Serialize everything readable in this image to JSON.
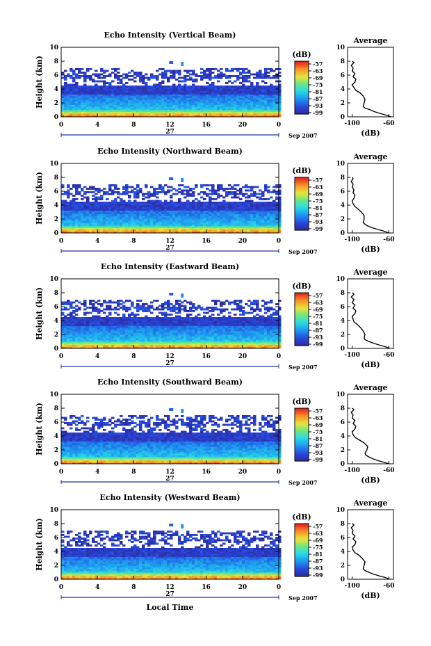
{
  "chart_data": [
    {
      "type": "heatmap",
      "title": "Echo Intensity (Vertical Beam)",
      "ylabel": "Height (km)",
      "ylim": [
        0,
        10
      ],
      "yticks": [
        "0",
        "2",
        "4",
        "6",
        "8",
        "10"
      ],
      "xlim": [
        0,
        24
      ],
      "xticks": [
        "0",
        "4",
        "8",
        "12",
        "16",
        "20",
        "0"
      ],
      "date_label": "27",
      "month_label": "Sep 2007",
      "colorbar": {
        "unit": "(dB)",
        "labels": [
          "-57",
          "-63",
          "-69",
          "-75",
          "-81",
          "-87",
          "-93",
          "-99"
        ],
        "range": [
          -99,
          -57
        ]
      },
      "profile": {
        "title": "Average",
        "xlabel": "(dB)",
        "xticks": [
          "-100",
          "-60"
        ],
        "xlim": [
          -105,
          -55
        ],
        "height": [
          0,
          0.25,
          0.5,
          0.75,
          1.0,
          1.25,
          1.5,
          2.0,
          2.5,
          3.0,
          3.5,
          3.8,
          4.2,
          4.6,
          5.0,
          5.4,
          5.8,
          6.2,
          6.6,
          7.0,
          7.4,
          7.8,
          8.0
        ],
        "value": [
          -58,
          -63,
          -70,
          -76,
          -80,
          -86,
          -88,
          -87,
          -86,
          -88,
          -92,
          -96,
          -98,
          -100,
          -97,
          -96,
          -99,
          -97,
          -100,
          -99,
          -101,
          -98,
          -100
        ]
      }
    },
    {
      "type": "heatmap",
      "title": "Echo Intensity (Northward Beam)",
      "ylabel": "Height (km)",
      "ylim": [
        0,
        10
      ],
      "yticks": [
        "0",
        "2",
        "4",
        "6",
        "8",
        "10"
      ],
      "xlim": [
        0,
        24
      ],
      "xticks": [
        "0",
        "4",
        "8",
        "12",
        "16",
        "20",
        "0"
      ],
      "date_label": "27",
      "month_label": "Sep 2007",
      "colorbar": {
        "unit": "(dB)",
        "labels": [
          "-57",
          "-63",
          "-69",
          "-75",
          "-81",
          "-87",
          "-93",
          "-99"
        ],
        "range": [
          -99,
          -57
        ]
      },
      "profile": {
        "title": "Average",
        "xlabel": "(dB)",
        "xticks": [
          "-100",
          "-60"
        ],
        "xlim": [
          -105,
          -55
        ],
        "height": [
          0,
          0.25,
          0.5,
          0.75,
          1.0,
          1.25,
          1.5,
          2.0,
          2.5,
          3.0,
          3.5,
          3.8,
          4.2,
          4.6,
          5.0,
          5.4,
          5.8,
          6.2,
          6.6,
          7.0,
          7.4,
          7.8,
          8.0
        ],
        "value": [
          -60,
          -65,
          -72,
          -78,
          -83,
          -86,
          -88,
          -87,
          -87,
          -90,
          -94,
          -97,
          -99,
          -100,
          -98,
          -97,
          -99,
          -98,
          -100,
          -99,
          -101,
          -99,
          -100
        ]
      }
    },
    {
      "type": "heatmap",
      "title": "Echo Intensity (Eastward Beam)",
      "ylabel": "Height (km)",
      "ylim": [
        0,
        10
      ],
      "yticks": [
        "0",
        "2",
        "4",
        "6",
        "8",
        "10"
      ],
      "xlim": [
        0,
        24
      ],
      "xticks": [
        "0",
        "4",
        "8",
        "12",
        "16",
        "20",
        "0"
      ],
      "date_label": "27",
      "month_label": "Sep 2007",
      "colorbar": {
        "unit": "(dB)",
        "labels": [
          "-57",
          "-63",
          "-69",
          "-75",
          "-81",
          "-87",
          "-93",
          "-99"
        ],
        "range": [
          -99,
          -57
        ]
      },
      "profile": {
        "title": "Average",
        "xlabel": "(dB)",
        "xticks": [
          "-100",
          "-60"
        ],
        "xlim": [
          -105,
          -55
        ],
        "height": [
          0,
          0.25,
          0.5,
          0.75,
          1.0,
          1.25,
          1.5,
          2.0,
          2.5,
          3.0,
          3.5,
          3.8,
          4.2,
          4.6,
          5.0,
          5.4,
          5.8,
          6.2,
          6.6,
          7.0,
          7.4,
          7.8,
          8.0
        ],
        "value": [
          -59,
          -64,
          -71,
          -77,
          -82,
          -86,
          -87,
          -86,
          -88,
          -91,
          -95,
          -98,
          -99,
          -100,
          -97,
          -96,
          -99,
          -97,
          -100,
          -98,
          -101,
          -98,
          -100
        ]
      }
    },
    {
      "type": "heatmap",
      "title": "Echo Intensity (Southward Beam)",
      "ylabel": "Height (km)",
      "ylim": [
        0,
        10
      ],
      "yticks": [
        "0",
        "2",
        "4",
        "6",
        "8",
        "10"
      ],
      "xlim": [
        0,
        24
      ],
      "xticks": [
        "0",
        "4",
        "8",
        "12",
        "16",
        "20",
        "0"
      ],
      "date_label": "27",
      "month_label": "Sep 2007",
      "colorbar": {
        "unit": "(dB)",
        "labels": [
          "-57",
          "-63",
          "-69",
          "-75",
          "-81",
          "-87",
          "-93",
          "-99"
        ],
        "range": [
          -99,
          -57
        ]
      },
      "profile": {
        "title": "Average",
        "xlabel": "(dB)",
        "xticks": [
          "-100",
          "-60"
        ],
        "xlim": [
          -105,
          -55
        ],
        "height": [
          0,
          0.25,
          0.5,
          0.75,
          1.0,
          1.25,
          1.5,
          2.0,
          2.5,
          3.0,
          3.5,
          3.8,
          4.2,
          4.6,
          5.0,
          5.4,
          5.8,
          6.2,
          6.6,
          7.0,
          7.4,
          7.8,
          8.0
        ],
        "value": [
          -60,
          -66,
          -73,
          -78,
          -82,
          -85,
          -86,
          -84,
          -83,
          -87,
          -93,
          -97,
          -99,
          -100,
          -97,
          -96,
          -99,
          -97,
          -100,
          -99,
          -101,
          -98,
          -100
        ]
      }
    },
    {
      "type": "heatmap",
      "title": "Echo Intensity (Westward Beam)",
      "ylabel": "Height (km)",
      "ylim": [
        0,
        10
      ],
      "yticks": [
        "0",
        "2",
        "4",
        "6",
        "8",
        "10"
      ],
      "xlim": [
        0,
        24
      ],
      "xticks": [
        "0",
        "4",
        "8",
        "12",
        "16",
        "20",
        "0"
      ],
      "date_label": "27",
      "month_label": "Sep 2007",
      "xlabel": "Local Time",
      "colorbar": {
        "unit": "(dB)",
        "labels": [
          "-57",
          "-63",
          "-69",
          "-75",
          "-81",
          "-87",
          "-93",
          "-99"
        ],
        "range": [
          -99,
          -57
        ]
      },
      "profile": {
        "title": "Average",
        "xlabel": "(dB)",
        "xticks": [
          "-100",
          "-60"
        ],
        "xlim": [
          -105,
          -55
        ],
        "height": [
          0,
          0.25,
          0.5,
          0.75,
          1.0,
          1.25,
          1.5,
          2.0,
          2.5,
          3.0,
          3.5,
          3.8,
          4.2,
          4.6,
          5.0,
          5.4,
          5.8,
          6.2,
          6.6,
          7.0,
          7.4,
          7.8,
          8.0
        ],
        "value": [
          -59,
          -64,
          -71,
          -77,
          -82,
          -86,
          -88,
          -87,
          -86,
          -89,
          -93,
          -97,
          -99,
          -100,
          -97,
          -96,
          -99,
          -97,
          -100,
          -99,
          -101,
          -98,
          -100
        ]
      }
    }
  ]
}
